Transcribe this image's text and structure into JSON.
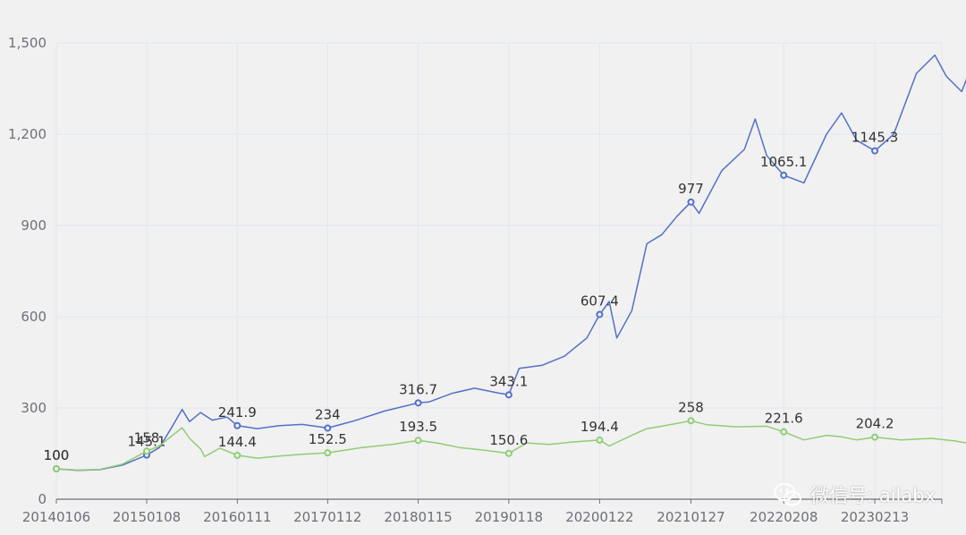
{
  "chart_data": {
    "type": "line",
    "xlabel": "",
    "ylabel": "",
    "ylim": [
      0,
      1500
    ],
    "y_ticks": [
      "0",
      "300",
      "600",
      "900",
      "1,200",
      "1,500"
    ],
    "y_tick_values": [
      0,
      300,
      600,
      900,
      1200,
      1500
    ],
    "x_ticks": [
      "20140106",
      "20150108",
      "20160111",
      "20170112",
      "20180115",
      "20190118",
      "20200122",
      "20210127",
      "20220208",
      "20230213"
    ],
    "grid": true,
    "colors": {
      "series_a": "#5470c6",
      "series_b": "#91cc75",
      "axis": "#6e7079",
      "grid": "#e0e6f1"
    },
    "series": [
      {
        "key": "series_a",
        "points": [
          [
            "20140106",
            100
          ],
          [
            "20140401",
            95
          ],
          [
            "20140701",
            97
          ],
          [
            "20141001",
            112
          ],
          [
            "20150108",
            145.1
          ],
          [
            "20150301",
            170
          ],
          [
            "20150415",
            230
          ],
          [
            "20150601",
            295
          ],
          [
            "20150701",
            255
          ],
          [
            "20150815",
            285
          ],
          [
            "20151001",
            260
          ],
          [
            "20151201",
            270
          ],
          [
            "20160111",
            241.9
          ],
          [
            "20160401",
            232
          ],
          [
            "20160701",
            242
          ],
          [
            "20161001",
            246
          ],
          [
            "20170112",
            234
          ],
          [
            "20170501",
            258
          ],
          [
            "20170901",
            290
          ],
          [
            "20180115",
            316.7
          ],
          [
            "20180301",
            320
          ],
          [
            "20180601",
            348
          ],
          [
            "20180901",
            365
          ],
          [
            "20181201",
            350
          ],
          [
            "20190118",
            343.1
          ],
          [
            "20190301",
            430
          ],
          [
            "20190601",
            440
          ],
          [
            "20190901",
            470
          ],
          [
            "20191201",
            530
          ],
          [
            "20200122",
            607.4
          ],
          [
            "20200301",
            650
          ],
          [
            "20200401",
            530
          ],
          [
            "20200601",
            620
          ],
          [
            "20200801",
            840
          ],
          [
            "20201001",
            870
          ],
          [
            "20201201",
            930
          ],
          [
            "20210127",
            977
          ],
          [
            "20210301",
            940
          ],
          [
            "20210601",
            1080
          ],
          [
            "20210901",
            1150
          ],
          [
            "20211015",
            1250
          ],
          [
            "20211201",
            1130
          ],
          [
            "20220101",
            1100
          ],
          [
            "20220208",
            1065.1
          ],
          [
            "20220501",
            1040
          ],
          [
            "20220801",
            1200
          ],
          [
            "20221001",
            1270
          ],
          [
            "20221201",
            1180
          ],
          [
            "20230213",
            1145.3
          ],
          [
            "20230501",
            1200
          ],
          [
            "20230801",
            1400
          ],
          [
            "20231015",
            1460
          ],
          [
            "20231201",
            1390
          ],
          [
            "20240201",
            1340
          ],
          [
            "20240315",
            1430
          ],
          [
            "20240410",
            1425
          ]
        ],
        "labeled": [
          [
            "20140106",
            100,
            "100"
          ],
          [
            "20150108",
            145.1,
            "145.1"
          ],
          [
            "20160111",
            241.9,
            "241.9"
          ],
          [
            "20170112",
            234,
            "234"
          ],
          [
            "20180115",
            316.7,
            "316.7"
          ],
          [
            "20190118",
            343.1,
            "343.1"
          ],
          [
            "20200122",
            607.4,
            "607.4"
          ],
          [
            "20210127",
            977,
            "977"
          ],
          [
            "20220208",
            1065.1,
            "1065.1"
          ],
          [
            "20230213",
            1145.3,
            "1145.3"
          ]
        ]
      },
      {
        "key": "series_b",
        "points": [
          [
            "20140106",
            100
          ],
          [
            "20140401",
            96
          ],
          [
            "20140701",
            98
          ],
          [
            "20141001",
            115
          ],
          [
            "20150108",
            158
          ],
          [
            "20150301",
            175
          ],
          [
            "20150415",
            205
          ],
          [
            "20150601",
            235
          ],
          [
            "20150701",
            200
          ],
          [
            "20150815",
            165
          ],
          [
            "20150901",
            140
          ],
          [
            "20151101",
            168
          ],
          [
            "20160111",
            144.4
          ],
          [
            "20160401",
            135
          ],
          [
            "20160701",
            142
          ],
          [
            "20161001",
            148
          ],
          [
            "20170112",
            152.5
          ],
          [
            "20170601",
            170
          ],
          [
            "20171001",
            180
          ],
          [
            "20180115",
            193.5
          ],
          [
            "20180401",
            185
          ],
          [
            "20180701",
            170
          ],
          [
            "20181001",
            162
          ],
          [
            "20190118",
            150.6
          ],
          [
            "20190401",
            185
          ],
          [
            "20190701",
            180
          ],
          [
            "20191001",
            188
          ],
          [
            "20200122",
            194.4
          ],
          [
            "20200301",
            175
          ],
          [
            "20200601",
            210
          ],
          [
            "20200801",
            232
          ],
          [
            "20201001",
            240
          ],
          [
            "20210127",
            258
          ],
          [
            "20210401",
            245
          ],
          [
            "20210801",
            238
          ],
          [
            "20211201",
            240
          ],
          [
            "20220208",
            221.6
          ],
          [
            "20220501",
            195
          ],
          [
            "20220801",
            210
          ],
          [
            "20221001",
            205
          ],
          [
            "20221201",
            195
          ],
          [
            "20230213",
            204.2
          ],
          [
            "20230601",
            195
          ],
          [
            "20231001",
            200
          ],
          [
            "20240101",
            192
          ],
          [
            "20240410",
            178
          ]
        ],
        "labeled": [
          [
            "20140106",
            100,
            "100"
          ],
          [
            "20150108",
            158,
            "158"
          ],
          [
            "20160111",
            144.4,
            "144.4"
          ],
          [
            "20170112",
            152.5,
            "152.5"
          ],
          [
            "20180115",
            193.5,
            "193.5"
          ],
          [
            "20190118",
            150.6,
            "150.6"
          ],
          [
            "20200122",
            194.4,
            "194.4"
          ],
          [
            "20210127",
            258,
            "258"
          ],
          [
            "20220208",
            221.6,
            "221.6"
          ],
          [
            "20230213",
            204.2,
            "204.2"
          ]
        ]
      }
    ]
  },
  "watermark": {
    "text": "微信号: ailabx",
    "icon": "wechat-icon"
  }
}
